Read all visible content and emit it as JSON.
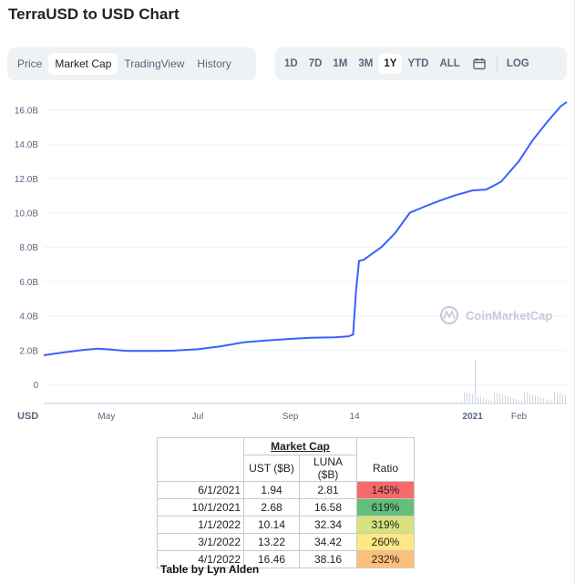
{
  "title": "TerraUSD to USD Chart",
  "tabs_left": [
    {
      "label": "Price",
      "active": false
    },
    {
      "label": "Market Cap",
      "active": true
    },
    {
      "label": "TradingView",
      "active": false
    },
    {
      "label": "History",
      "active": false
    }
  ],
  "tabs_right": [
    {
      "label": "1D",
      "active": false
    },
    {
      "label": "7D",
      "active": false
    },
    {
      "label": "1M",
      "active": false
    },
    {
      "label": "3M",
      "active": false
    },
    {
      "label": "1Y",
      "active": true
    },
    {
      "label": "YTD",
      "active": false
    },
    {
      "label": "ALL",
      "active": false
    }
  ],
  "calendar_icon": "calendar-icon",
  "log_label": "LOG",
  "watermark": "CoinMarketCap",
  "chart_data": {
    "type": "line",
    "currency_label": "USD",
    "line_color": "#3861fb",
    "y_ticks": [
      "16.0B",
      "14.0B",
      "12.0B",
      "10.0B",
      "8.0B",
      "6.0B",
      "4.0B",
      "2.0B",
      "0"
    ],
    "x_ticks": [
      "May",
      "Jul",
      "Sep",
      "14",
      "2021",
      "Feb"
    ],
    "ylim": [
      0,
      16.5
    ],
    "x": [
      "2020-03-20",
      "2020-04-01",
      "2020-04-15",
      "2020-04-25",
      "2020-05-01",
      "2020-05-15",
      "2020-06-01",
      "2020-06-15",
      "2020-07-01",
      "2020-07-15",
      "2020-08-01",
      "2020-08-15",
      "2020-09-01",
      "2020-09-15",
      "2020-10-01",
      "2020-10-10",
      "2020-10-13",
      "2020-10-15",
      "2020-10-17",
      "2020-10-20",
      "2020-11-01",
      "2020-11-10",
      "2020-11-20",
      "2020-12-01",
      "2020-12-10",
      "2020-12-20",
      "2021-01-01",
      "2021-01-10",
      "2021-01-20",
      "2021-02-01",
      "2021-02-10",
      "2021-02-20",
      "2021-03-01",
      "2021-03-05"
    ],
    "values": [
      1.7,
      1.85,
      2.0,
      2.08,
      2.05,
      1.95,
      1.95,
      1.97,
      2.05,
      2.2,
      2.45,
      2.55,
      2.65,
      2.72,
      2.75,
      2.8,
      2.9,
      5.5,
      7.2,
      7.25,
      8.0,
      8.8,
      10.0,
      10.4,
      10.7,
      11.0,
      11.3,
      11.35,
      11.8,
      13.0,
      14.2,
      15.3,
      16.2,
      16.45
    ],
    "volume_spike_label": "",
    "table": {
      "group_header": "Market Cap",
      "columns": [
        "UST ($B)",
        "LUNA ($B)",
        "Ratio"
      ],
      "rows": [
        {
          "date": "6/1/2021",
          "ust": "1.94",
          "luna": "2.81",
          "ratio": "145%",
          "color": "#f8696b"
        },
        {
          "date": "10/1/2021",
          "ust": "2.68",
          "luna": "16.58",
          "ratio": "619%",
          "color": "#63be7b"
        },
        {
          "date": "1/1/2022",
          "ust": "10.14",
          "luna": "32.34",
          "ratio": "319%",
          "color": "#d7e27f"
        },
        {
          "date": "3/1/2022",
          "ust": "13.22",
          "luna": "34.42",
          "ratio": "260%",
          "color": "#fde883"
        },
        {
          "date": "4/1/2022",
          "ust": "16.46",
          "luna": "38.16",
          "ratio": "232%",
          "color": "#fbc07a"
        }
      ]
    }
  },
  "caption": "Table by Lyn Alden"
}
